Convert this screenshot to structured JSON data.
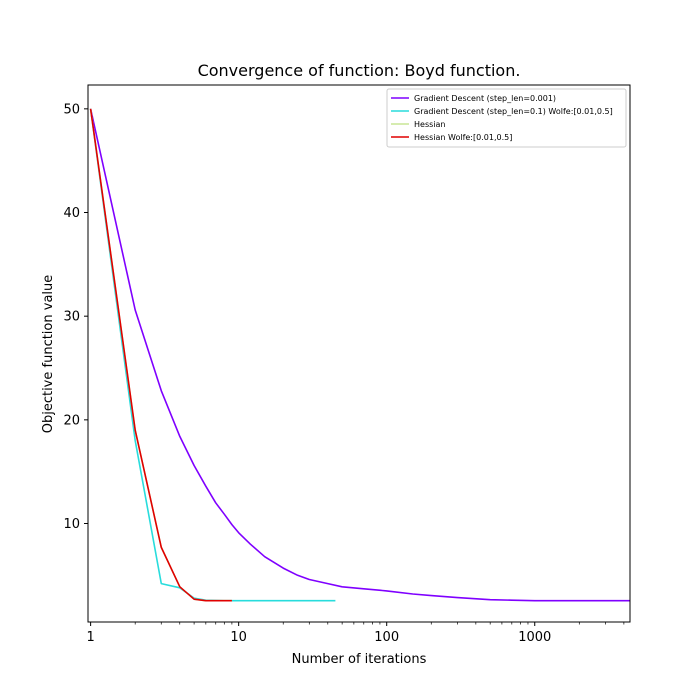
{
  "chart_data": {
    "type": "line",
    "title": "Convergence of function: Boyd function.",
    "xlabel": "Number of iterations",
    "ylabel": "Objective function value",
    "xscale": "log",
    "xlim": [
      0.96,
      4400
    ],
    "ylim": [
      0.5,
      52.3
    ],
    "xticks": [
      {
        "value": 1,
        "label": "1"
      },
      {
        "value": 10,
        "label": "10"
      },
      {
        "value": 100,
        "label": "100"
      },
      {
        "value": 1000,
        "label": "1000"
      }
    ],
    "yticks": [
      {
        "value": 10,
        "label": "10"
      },
      {
        "value": 20,
        "label": "20"
      },
      {
        "value": 30,
        "label": "30"
      },
      {
        "value": 40,
        "label": "40"
      },
      {
        "value": 50,
        "label": "50"
      }
    ],
    "grid": false,
    "legend_position": "top-right",
    "series": [
      {
        "name": "Gradient Descent (step_len=0.001)",
        "color": "#7f00ff",
        "x": [
          1,
          2,
          3,
          4,
          5,
          6,
          7,
          8,
          9,
          10,
          12,
          15,
          20,
          25,
          30,
          40,
          50,
          70,
          100,
          150,
          200,
          300,
          500,
          700,
          1000,
          2000,
          4400
        ],
        "y": [
          50.0,
          30.6,
          22.8,
          18.4,
          15.6,
          13.6,
          12.0,
          10.9,
          9.9,
          9.1,
          8.0,
          6.8,
          5.7,
          5.0,
          4.6,
          4.2,
          3.9,
          3.7,
          3.5,
          3.2,
          3.05,
          2.85,
          2.65,
          2.6,
          2.55,
          2.55,
          2.55
        ]
      },
      {
        "name": "Gradient Descent (step_len=0.1) Wolfe:[0.01,0.5]",
        "color": "#28dcdc",
        "x": [
          1,
          2,
          3,
          4,
          5,
          6,
          8,
          10,
          20,
          30,
          45
        ],
        "y": [
          50.0,
          18.0,
          4.2,
          3.8,
          2.8,
          2.6,
          2.55,
          2.55,
          2.55,
          2.55,
          2.55
        ]
      },
      {
        "name": "Hessian",
        "color": "#c8e696",
        "x": [
          1,
          2,
          3,
          4,
          5,
          6,
          7,
          8,
          9
        ],
        "y": [
          50.0,
          19.0,
          7.7,
          3.9,
          2.7,
          2.55,
          2.55,
          2.55,
          2.55
        ]
      },
      {
        "name": "Hessian Wolfe:[0.01,0.5]",
        "color": "#e00000",
        "x": [
          1,
          2,
          3,
          4,
          5,
          6,
          7,
          8,
          9
        ],
        "y": [
          50.0,
          19.0,
          7.7,
          3.9,
          2.7,
          2.55,
          2.55,
          2.55,
          2.55
        ]
      }
    ]
  }
}
